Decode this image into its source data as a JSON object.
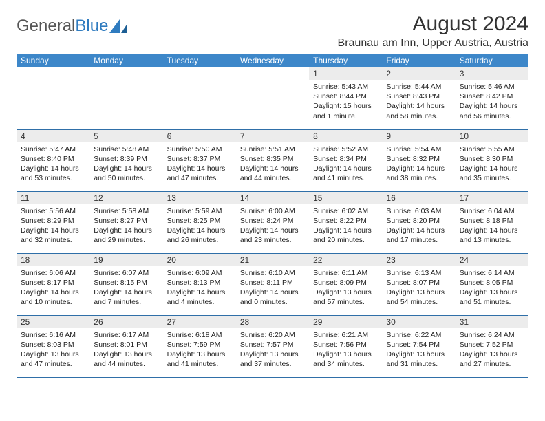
{
  "brand": {
    "part1": "General",
    "part2": "Blue"
  },
  "colors": {
    "header_bg": "#3d87c9",
    "row_divider": "#2f6fa8",
    "daynum_bg": "#ececec",
    "brand_blue": "#2f7bbf",
    "text": "#222222"
  },
  "title": "August 2024",
  "location": "Braunau am Inn, Upper Austria, Austria",
  "weekdays": [
    "Sunday",
    "Monday",
    "Tuesday",
    "Wednesday",
    "Thursday",
    "Friday",
    "Saturday"
  ],
  "weeks": [
    [
      {
        "n": "",
        "t": ""
      },
      {
        "n": "",
        "t": ""
      },
      {
        "n": "",
        "t": ""
      },
      {
        "n": "",
        "t": ""
      },
      {
        "n": "1",
        "t": "Sunrise: 5:43 AM\nSunset: 8:44 PM\nDaylight: 15 hours and 1 minute."
      },
      {
        "n": "2",
        "t": "Sunrise: 5:44 AM\nSunset: 8:43 PM\nDaylight: 14 hours and 58 minutes."
      },
      {
        "n": "3",
        "t": "Sunrise: 5:46 AM\nSunset: 8:42 PM\nDaylight: 14 hours and 56 minutes."
      }
    ],
    [
      {
        "n": "4",
        "t": "Sunrise: 5:47 AM\nSunset: 8:40 PM\nDaylight: 14 hours and 53 minutes."
      },
      {
        "n": "5",
        "t": "Sunrise: 5:48 AM\nSunset: 8:39 PM\nDaylight: 14 hours and 50 minutes."
      },
      {
        "n": "6",
        "t": "Sunrise: 5:50 AM\nSunset: 8:37 PM\nDaylight: 14 hours and 47 minutes."
      },
      {
        "n": "7",
        "t": "Sunrise: 5:51 AM\nSunset: 8:35 PM\nDaylight: 14 hours and 44 minutes."
      },
      {
        "n": "8",
        "t": "Sunrise: 5:52 AM\nSunset: 8:34 PM\nDaylight: 14 hours and 41 minutes."
      },
      {
        "n": "9",
        "t": "Sunrise: 5:54 AM\nSunset: 8:32 PM\nDaylight: 14 hours and 38 minutes."
      },
      {
        "n": "10",
        "t": "Sunrise: 5:55 AM\nSunset: 8:30 PM\nDaylight: 14 hours and 35 minutes."
      }
    ],
    [
      {
        "n": "11",
        "t": "Sunrise: 5:56 AM\nSunset: 8:29 PM\nDaylight: 14 hours and 32 minutes."
      },
      {
        "n": "12",
        "t": "Sunrise: 5:58 AM\nSunset: 8:27 PM\nDaylight: 14 hours and 29 minutes."
      },
      {
        "n": "13",
        "t": "Sunrise: 5:59 AM\nSunset: 8:25 PM\nDaylight: 14 hours and 26 minutes."
      },
      {
        "n": "14",
        "t": "Sunrise: 6:00 AM\nSunset: 8:24 PM\nDaylight: 14 hours and 23 minutes."
      },
      {
        "n": "15",
        "t": "Sunrise: 6:02 AM\nSunset: 8:22 PM\nDaylight: 14 hours and 20 minutes."
      },
      {
        "n": "16",
        "t": "Sunrise: 6:03 AM\nSunset: 8:20 PM\nDaylight: 14 hours and 17 minutes."
      },
      {
        "n": "17",
        "t": "Sunrise: 6:04 AM\nSunset: 8:18 PM\nDaylight: 14 hours and 13 minutes."
      }
    ],
    [
      {
        "n": "18",
        "t": "Sunrise: 6:06 AM\nSunset: 8:17 PM\nDaylight: 14 hours and 10 minutes."
      },
      {
        "n": "19",
        "t": "Sunrise: 6:07 AM\nSunset: 8:15 PM\nDaylight: 14 hours and 7 minutes."
      },
      {
        "n": "20",
        "t": "Sunrise: 6:09 AM\nSunset: 8:13 PM\nDaylight: 14 hours and 4 minutes."
      },
      {
        "n": "21",
        "t": "Sunrise: 6:10 AM\nSunset: 8:11 PM\nDaylight: 14 hours and 0 minutes."
      },
      {
        "n": "22",
        "t": "Sunrise: 6:11 AM\nSunset: 8:09 PM\nDaylight: 13 hours and 57 minutes."
      },
      {
        "n": "23",
        "t": "Sunrise: 6:13 AM\nSunset: 8:07 PM\nDaylight: 13 hours and 54 minutes."
      },
      {
        "n": "24",
        "t": "Sunrise: 6:14 AM\nSunset: 8:05 PM\nDaylight: 13 hours and 51 minutes."
      }
    ],
    [
      {
        "n": "25",
        "t": "Sunrise: 6:16 AM\nSunset: 8:03 PM\nDaylight: 13 hours and 47 minutes."
      },
      {
        "n": "26",
        "t": "Sunrise: 6:17 AM\nSunset: 8:01 PM\nDaylight: 13 hours and 44 minutes."
      },
      {
        "n": "27",
        "t": "Sunrise: 6:18 AM\nSunset: 7:59 PM\nDaylight: 13 hours and 41 minutes."
      },
      {
        "n": "28",
        "t": "Sunrise: 6:20 AM\nSunset: 7:57 PM\nDaylight: 13 hours and 37 minutes."
      },
      {
        "n": "29",
        "t": "Sunrise: 6:21 AM\nSunset: 7:56 PM\nDaylight: 13 hours and 34 minutes."
      },
      {
        "n": "30",
        "t": "Sunrise: 6:22 AM\nSunset: 7:54 PM\nDaylight: 13 hours and 31 minutes."
      },
      {
        "n": "31",
        "t": "Sunrise: 6:24 AM\nSunset: 7:52 PM\nDaylight: 13 hours and 27 minutes."
      }
    ]
  ]
}
